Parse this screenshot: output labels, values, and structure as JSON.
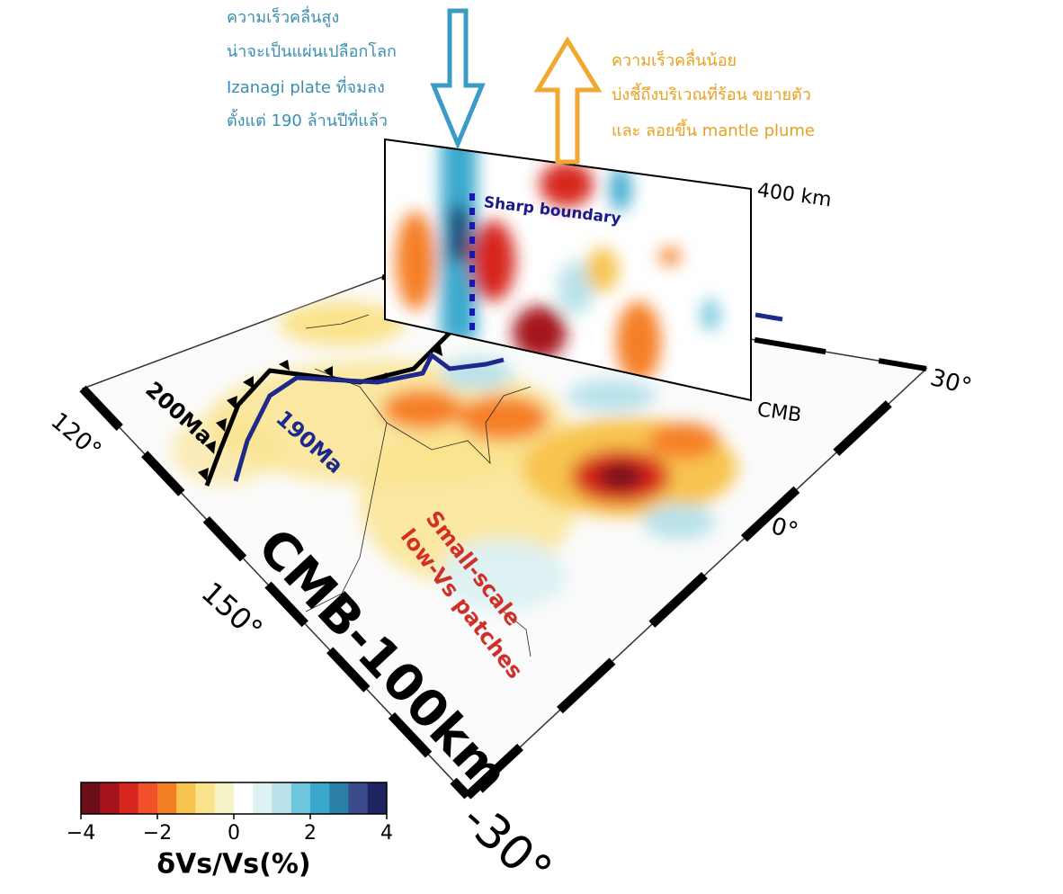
{
  "annotations": {
    "high_velocity": [
      "ความเร็วคลื่นสูง",
      "น่าจะเป็นแผ่นเปลือกโลก",
      "Izanagi plate ที่จมลง",
      "ตั้งแต่ 190 ล้านปีที่แล้ว"
    ],
    "low_velocity": [
      "ความเร็วคลื่นน้อย",
      "บ่งชี้ถึงบริเวณที่ร้อน ขยายตัว",
      "และ ลอยขึ้น mantle plume"
    ]
  },
  "section": {
    "top": "400 km",
    "bottom": "CMB",
    "boundary": "Sharp boundary"
  },
  "map": {
    "depth": "CMB-100km",
    "patches": [
      "Small-scale",
      "low-Vs patches"
    ],
    "age_200": "200Ma",
    "age_190": "190Ma",
    "axis_labels": [
      "120°",
      "150°",
      "-30°",
      "0°",
      "30°"
    ]
  },
  "colorbar": {
    "label": "δVs/Vs(%)",
    "lim": [
      -4,
      4
    ],
    "ticks": [
      {
        "value": -4,
        "label": "−4"
      },
      {
        "value": -2,
        "label": "−2"
      },
      0,
      2,
      4
    ],
    "colors": [
      "#6b0f1a",
      "#a5141c",
      "#d7261e",
      "#f0512a",
      "#f57f25",
      "#f8c450",
      "#fae38c",
      "#f6f3c8",
      "#ffffff",
      "#def1f3",
      "#b9e2ea",
      "#6fc6dc",
      "#3aa8cc",
      "#2a7fa6",
      "#3b4a8a",
      "#1d2460"
    ]
  }
}
